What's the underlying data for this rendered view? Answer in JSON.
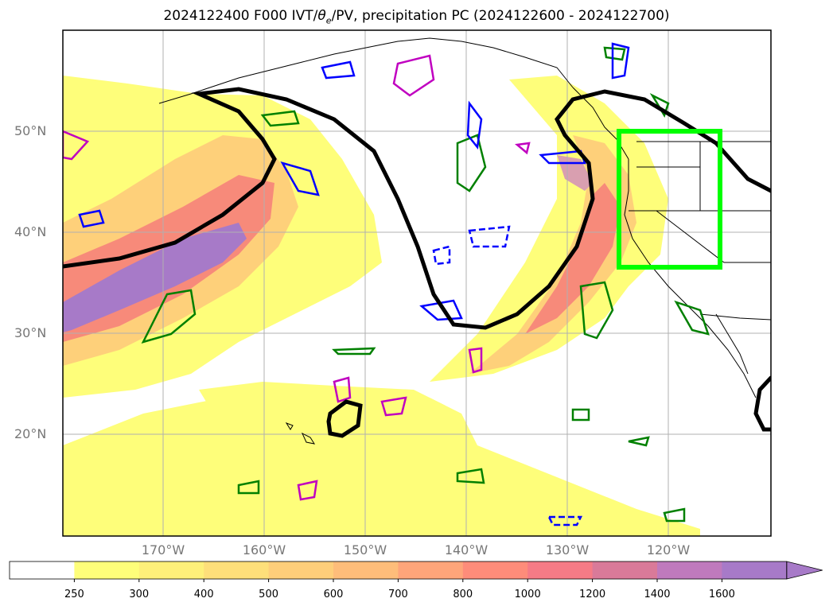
{
  "title_prefix": "2024122400 F000 IVT/",
  "title_theta": "θ",
  "title_sub": "e",
  "title_suffix": "/PV, precipitation PC (2024122600 - 2024122700)",
  "lat_labels": [
    "50°N",
    "40°N",
    "30°N",
    "20°N"
  ],
  "lon_labels": [
    "170°W",
    "160°W",
    "150°W",
    "140°W",
    "130°W",
    "120°W"
  ],
  "colorbar": {
    "levels": [
      "250",
      "300",
      "400",
      "500",
      "600",
      "700",
      "800",
      "1000",
      "1200",
      "1400",
      "1600"
    ],
    "colors": [
      "#ffffff",
      "#fefe7a",
      "#fef07a",
      "#fedf7a",
      "#fece7a",
      "#febd7a",
      "#fea57a",
      "#fe8c7a",
      "#f57b86",
      "#d97a99",
      "#bf7abd",
      "#a77ac8"
    ]
  },
  "colors": {
    "ivt_low": "#fefe7a",
    "ivt_mid": "#fe9c7a",
    "ivt_high": "#a77ac8",
    "theta_contour": "#000000",
    "pv_positive": "#0000ff",
    "pv_other": "#008000",
    "pv_magenta": "#c000c0",
    "target_box": "#00ff00",
    "coast": "#000000",
    "grid": "#b0b0b0"
  }
}
